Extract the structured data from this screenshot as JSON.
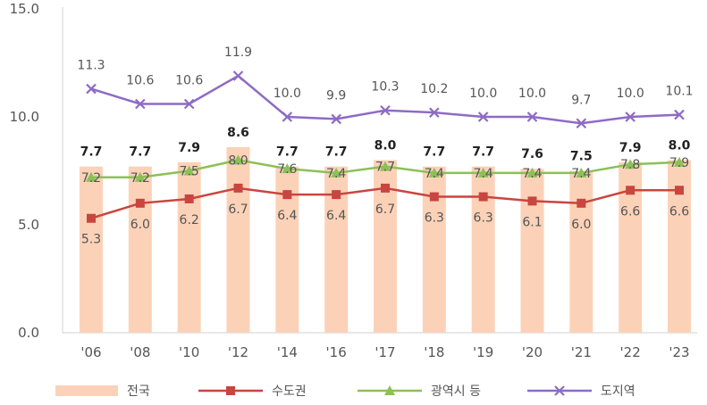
{
  "chart_data": {
    "type": "bar",
    "categories": [
      "'06",
      "'08",
      "'10",
      "'12",
      "'14",
      "'16",
      "'17",
      "'18",
      "'19",
      "'20",
      "'21",
      "'22",
      "'23"
    ],
    "ylim": [
      0,
      15
    ],
    "yticks": [
      "0.0",
      "5.0",
      "10.0",
      "15.0"
    ],
    "grid": false,
    "legend_position": "bottom",
    "bar_series": {
      "name": "전국",
      "color": "#fbd2b8",
      "values": [
        7.7,
        7.7,
        7.9,
        8.6,
        7.7,
        7.7,
        8.0,
        7.7,
        7.7,
        7.6,
        7.5,
        7.9,
        8.0
      ],
      "labels": [
        "7.7",
        "7.7",
        "7.9",
        "8.6",
        "7.7",
        "7.7",
        "8.0",
        "7.7",
        "7.7",
        "7.6",
        "7.5",
        "7.9",
        "8.0"
      ]
    },
    "line_series": [
      {
        "name": "수도권",
        "color": "#c9453f",
        "marker": "square",
        "values": [
          5.3,
          6.0,
          6.2,
          6.7,
          6.4,
          6.4,
          6.7,
          6.3,
          6.3,
          6.1,
          6.0,
          6.6,
          6.6
        ],
        "labels": [
          "5.3",
          "6.0",
          "6.2",
          "6.7",
          "6.4",
          "6.4",
          "6.7",
          "6.3",
          "6.3",
          "6.1",
          "6.0",
          "6.6",
          "6.6"
        ]
      },
      {
        "name": "광역시 등",
        "color": "#8dc056",
        "marker": "triangle",
        "values": [
          7.2,
          7.2,
          7.5,
          8.0,
          7.6,
          7.4,
          7.7,
          7.4,
          7.4,
          7.4,
          7.4,
          7.8,
          7.9
        ],
        "labels": [
          "7.2",
          "7.2",
          "7.5",
          "8.0",
          "7.6",
          "7.4",
          "7.7",
          "7.4",
          "7.4",
          "7.4",
          "7.4",
          "7.8",
          "7.9"
        ]
      },
      {
        "name": "도지역",
        "color": "#8e6bc4",
        "marker": "x",
        "values": [
          11.3,
          10.6,
          10.6,
          11.9,
          10.0,
          9.9,
          10.3,
          10.2,
          10.0,
          10.0,
          9.7,
          10.0,
          10.1
        ],
        "labels": [
          "11.3",
          "10.6",
          "10.6",
          "11.9",
          "10.0",
          "9.9",
          "10.3",
          "10.2",
          "10.0",
          "10.0",
          "9.7",
          "10.0",
          "10.1"
        ]
      }
    ]
  }
}
